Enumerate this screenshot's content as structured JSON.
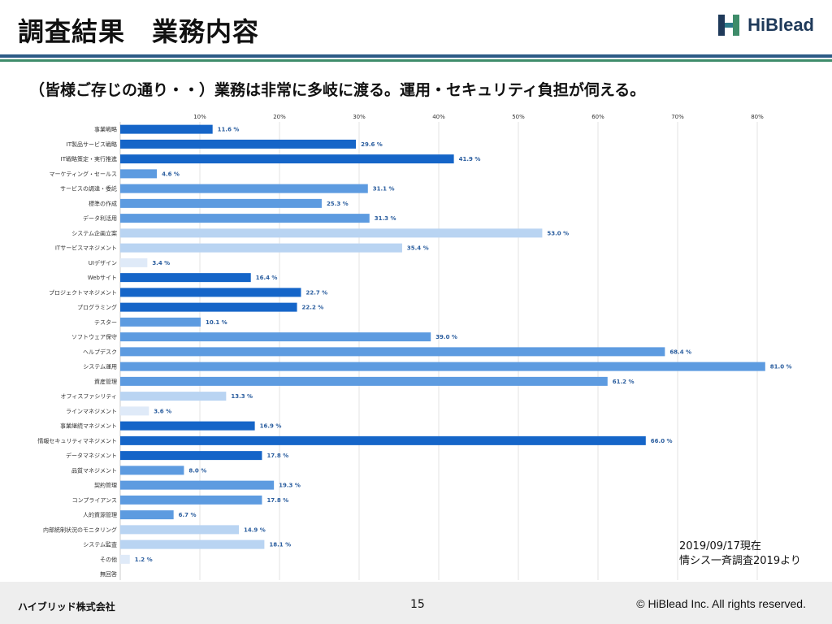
{
  "header": {
    "title": "調査結果　業務内容",
    "logo_text": "HiBlead"
  },
  "subtitle": "（皆様ご存じの通り・・）業務は非常に多岐に渡る。運用・セキュリティ負担が伺える。",
  "note": {
    "line1": "2019/09/17現在",
    "line2": "情シス一斉調査2019より"
  },
  "footer": {
    "company": "ハイブリッド株式会社",
    "page": "15",
    "copyright": "© HiBlead Inc. All rights reserved."
  },
  "colors": {
    "dark": "#1565c8",
    "mid": "#5d9be0",
    "light": "#b9d4f2",
    "lightest": "#dfeaf8"
  },
  "chart_data": {
    "type": "bar",
    "orientation": "horizontal",
    "x_ticks": [
      "10%",
      "20%",
      "30%",
      "40%",
      "50%",
      "60%",
      "70%",
      "80%"
    ],
    "xlim": [
      0,
      82
    ],
    "grid": true,
    "categories": [
      "事業戦略",
      "IT製品サービス戦略",
      "IT戦略策定・実行推進",
      "マーケティング・セールス",
      "サービスの調達・委託",
      "標準の作成",
      "データ利活用",
      "システム企画立案",
      "ITサービスマネジメント",
      "UIデザイン",
      "Webサイト",
      "プロジェクトマネジメント",
      "プログラミング",
      "テスター",
      "ソフトウェア保守",
      "ヘルプデスク",
      "システム運用",
      "資産管理",
      "オフィスファシリティ",
      "ラインマネジメント",
      "事業継続マネジメント",
      "情報セキュリティマネジメント",
      "データマネジメント",
      "品質マネジメント",
      "契約管理",
      "コンプライアンス",
      "人的資源管理",
      "内部統制状況のモニタリング",
      "システム監査",
      "その他",
      "無回答"
    ],
    "values": [
      11.6,
      29.6,
      41.9,
      4.6,
      31.1,
      25.3,
      31.3,
      53.0,
      35.4,
      3.4,
      16.4,
      22.7,
      22.2,
      10.1,
      39.0,
      68.4,
      81.0,
      61.2,
      13.3,
      3.6,
      16.9,
      66.0,
      17.8,
      8.0,
      19.3,
      17.8,
      6.7,
      14.9,
      18.1,
      1.2,
      null
    ],
    "value_labels": [
      "11.6 %",
      "29.6 %",
      "41.9 %",
      "4.6 %",
      "31.1 %",
      "25.3 %",
      "31.3 %",
      "53.0 %",
      "35.4 %",
      "3.4 %",
      "16.4 %",
      "22.7 %",
      "22.2 %",
      "10.1 %",
      "39.0 %",
      "68.4 %",
      "81.0 %",
      "61.2 %",
      "13.3 %",
      "3.6 %",
      "16.9 %",
      "66.0 %",
      "17.8 %",
      "8.0 %",
      "19.3 %",
      "17.8 %",
      "6.7 %",
      "14.9 %",
      "18.1 %",
      "1.2 %",
      ""
    ],
    "shades": [
      "dark",
      "dark",
      "dark",
      "mid",
      "mid",
      "mid",
      "mid",
      "light",
      "light",
      "lightest",
      "dark",
      "dark",
      "dark",
      "mid",
      "mid",
      "mid",
      "mid",
      "mid",
      "light",
      "lightest",
      "dark",
      "dark",
      "dark",
      "mid",
      "mid",
      "mid",
      "mid",
      "light",
      "light",
      "lightest",
      "lightest"
    ]
  }
}
